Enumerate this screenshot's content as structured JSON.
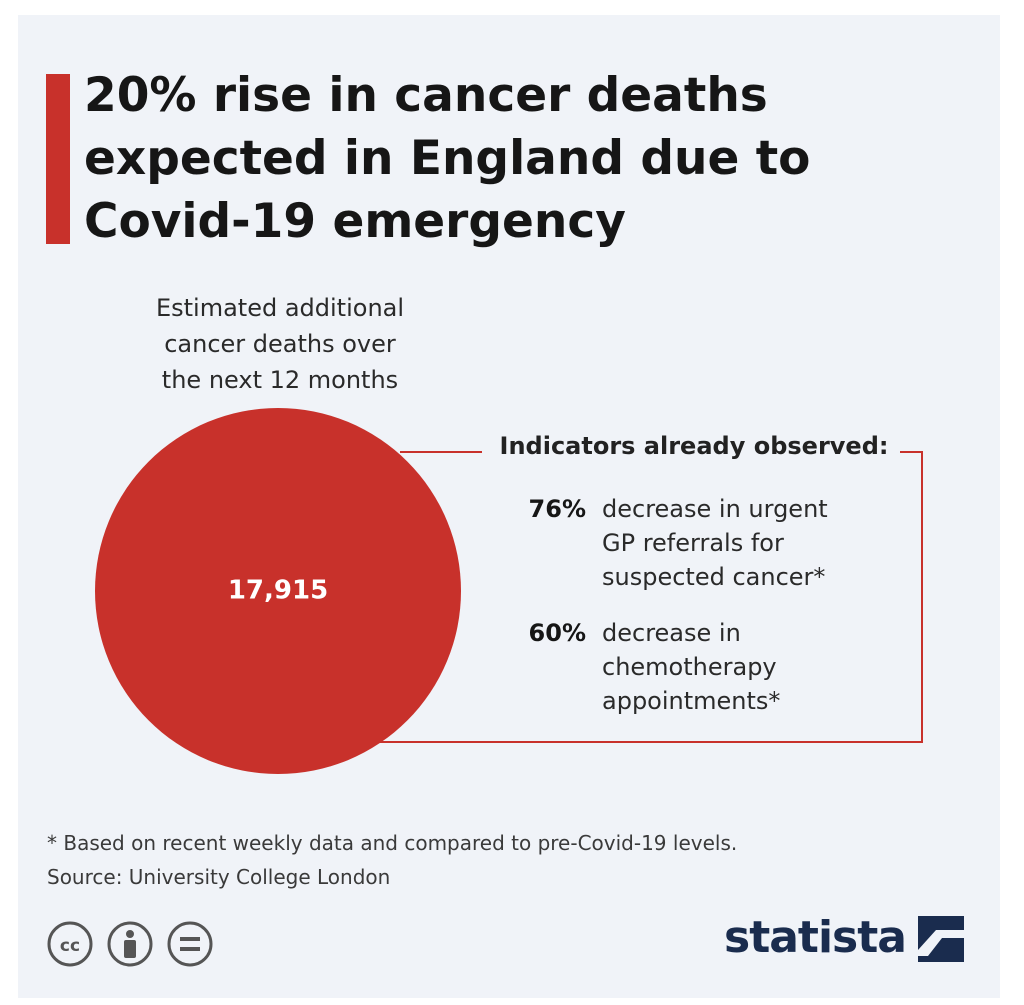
{
  "title": "20% rise in cancer deaths expected in England due to Covid-19 emergency",
  "subtitle_lines": [
    "Estimated additional",
    "cancer deaths over",
    "the next 12 months"
  ],
  "colors": {
    "accent": "#c8312b",
    "background": "#f0f3f8",
    "brand": "#1a2c4e"
  },
  "chart_data": {
    "type": "bubble",
    "values": [
      17915
    ],
    "value_label": "17,915",
    "color": "#c8312b"
  },
  "indicators": {
    "label": "Indicators already observed:",
    "items": [
      {
        "value": "76%",
        "lines": [
          "decrease in urgent",
          "GP referrals for",
          "suspected cancer*"
        ]
      },
      {
        "value": "60%",
        "lines": [
          "decrease in",
          "chemotherapy",
          "appointments*"
        ]
      }
    ]
  },
  "footnote": "* Based on recent weekly data and compared to pre-Covid-19 levels.",
  "source": "Source: University College London",
  "license_icons": [
    "creative-commons-icon",
    "attribution-icon",
    "no-derivatives-icon"
  ],
  "brand": "statista"
}
